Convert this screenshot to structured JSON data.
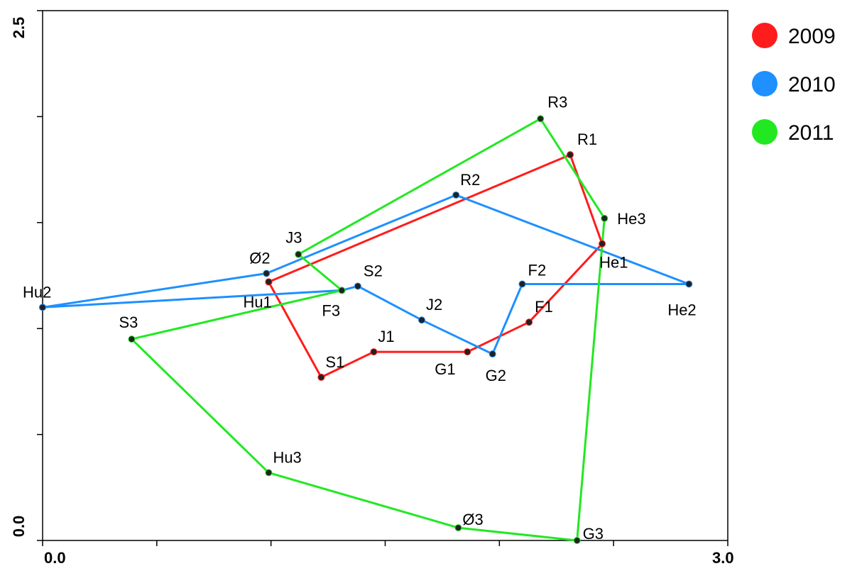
{
  "chart_data": {
    "type": "line",
    "xlim": [
      0.0,
      3.0
    ],
    "ylim": [
      0.0,
      2.5
    ],
    "x_tick_labels": [
      {
        "value": 0.0,
        "label": "0.0"
      },
      {
        "value": 3.0,
        "label": "3.0"
      }
    ],
    "y_tick_labels": [
      {
        "value": 0.0,
        "label": "0.0"
      },
      {
        "value": 2.5,
        "label": "2.5"
      }
    ],
    "x_minor_ticks": [
      0.5,
      1.0,
      1.5,
      2.0,
      2.5
    ],
    "y_minor_ticks": [
      0.5,
      1.0,
      1.5,
      2.0
    ],
    "grid": false,
    "legend_position": "top-right",
    "series": [
      {
        "name": "2009",
        "color": "#ff1c1c",
        "closed": false,
        "points": [
          {
            "label": "Hu1",
            "x": 0.99,
            "y": 1.22
          },
          {
            "label": "S1",
            "x": 1.22,
            "y": 0.77
          },
          {
            "label": "J1",
            "x": 1.45,
            "y": 0.89
          },
          {
            "label": "G1",
            "x": 1.86,
            "y": 0.89
          },
          {
            "label": "F1",
            "x": 2.13,
            "y": 1.03
          },
          {
            "label": "He1",
            "x": 2.45,
            "y": 1.4
          },
          {
            "label": "R1",
            "x": 2.31,
            "y": 1.82
          },
          {
            "label": "Hu1",
            "x": 0.99,
            "y": 1.22
          }
        ]
      },
      {
        "name": "2010",
        "color": "#1e90ff",
        "closed": false,
        "points": [
          {
            "label": "Hu2",
            "x": 0.0,
            "y": 1.1
          },
          {
            "label": "F3",
            "x": 1.31,
            "y": 1.18
          },
          {
            "label": "S2",
            "x": 1.38,
            "y": 1.2
          },
          {
            "label": "J2",
            "x": 1.66,
            "y": 1.04
          },
          {
            "label": "G2",
            "x": 1.97,
            "y": 0.88
          },
          {
            "label": "F2",
            "x": 2.1,
            "y": 1.21
          },
          {
            "label": "He2",
            "x": 2.83,
            "y": 1.21
          },
          {
            "label": "R2",
            "x": 1.81,
            "y": 1.63
          },
          {
            "label": "Ø2",
            "x": 0.98,
            "y": 1.26
          },
          {
            "label": "Hu2",
            "x": 0.0,
            "y": 1.1
          }
        ]
      },
      {
        "name": "2011",
        "color": "#22e822",
        "closed": false,
        "points": [
          {
            "label": "J3",
            "x": 1.12,
            "y": 1.35
          },
          {
            "label": "F3",
            "x": 1.31,
            "y": 1.18
          },
          {
            "label": "S3",
            "x": 0.39,
            "y": 0.95
          },
          {
            "label": "Hu3",
            "x": 0.99,
            "y": 0.32
          },
          {
            "label": "Ø3",
            "x": 1.82,
            "y": 0.06
          },
          {
            "label": "G3",
            "x": 2.34,
            "y": 0.0
          },
          {
            "label": "He3",
            "x": 2.46,
            "y": 1.52
          },
          {
            "label": "R3",
            "x": 2.18,
            "y": 1.99
          },
          {
            "label": "J3",
            "x": 1.12,
            "y": 1.35
          }
        ]
      }
    ],
    "point_labels": [
      {
        "text": "R3",
        "x": 2.18,
        "y": 1.99,
        "dx": 10,
        "dy": -16
      },
      {
        "text": "R1",
        "x": 2.31,
        "y": 1.82,
        "dx": 10,
        "dy": -14
      },
      {
        "text": "R2",
        "x": 1.81,
        "y": 1.63,
        "dx": 6,
        "dy": -14
      },
      {
        "text": "He3",
        "x": 2.46,
        "y": 1.52,
        "dx": 18,
        "dy": 8
      },
      {
        "text": "J3",
        "x": 1.12,
        "y": 1.35,
        "dx": -18,
        "dy": -16
      },
      {
        "text": "Ø2",
        "x": 0.98,
        "y": 1.26,
        "dx": -24,
        "dy": -14
      },
      {
        "text": "He1",
        "x": 2.45,
        "y": 1.4,
        "dx": -4,
        "dy": 34
      },
      {
        "text": "S2",
        "x": 1.38,
        "y": 1.2,
        "dx": 8,
        "dy": -14
      },
      {
        "text": "F2",
        "x": 2.1,
        "y": 1.21,
        "dx": 8,
        "dy": -12
      },
      {
        "text": "Hu2",
        "x": 0.0,
        "y": 1.1,
        "dx": -28,
        "dy": -14
      },
      {
        "text": "Hu1",
        "x": 0.99,
        "y": 1.22,
        "dx": -36,
        "dy": 36
      },
      {
        "text": "F3",
        "x": 1.31,
        "y": 1.18,
        "dx": -28,
        "dy": 36
      },
      {
        "text": "He2",
        "x": 2.83,
        "y": 1.21,
        "dx": -30,
        "dy": 44
      },
      {
        "text": "J2",
        "x": 1.66,
        "y": 1.04,
        "dx": 6,
        "dy": -14
      },
      {
        "text": "F1",
        "x": 2.13,
        "y": 1.03,
        "dx": 8,
        "dy": -14
      },
      {
        "text": "S3",
        "x": 0.39,
        "y": 0.95,
        "dx": -18,
        "dy": -16
      },
      {
        "text": "J1",
        "x": 1.45,
        "y": 0.89,
        "dx": 6,
        "dy": -14
      },
      {
        "text": "S1",
        "x": 1.22,
        "y": 0.77,
        "dx": 6,
        "dy": -14
      },
      {
        "text": "G1",
        "x": 1.86,
        "y": 0.89,
        "dx": -46,
        "dy": 32
      },
      {
        "text": "G2",
        "x": 1.97,
        "y": 0.88,
        "dx": -10,
        "dy": 38
      },
      {
        "text": "Hu3",
        "x": 0.99,
        "y": 0.32,
        "dx": 6,
        "dy": -14
      },
      {
        "text": "Ø3",
        "x": 1.82,
        "y": 0.06,
        "dx": 6,
        "dy": -4
      },
      {
        "text": "G3",
        "x": 2.34,
        "y": 0.0,
        "dx": 8,
        "dy": -2
      }
    ]
  }
}
